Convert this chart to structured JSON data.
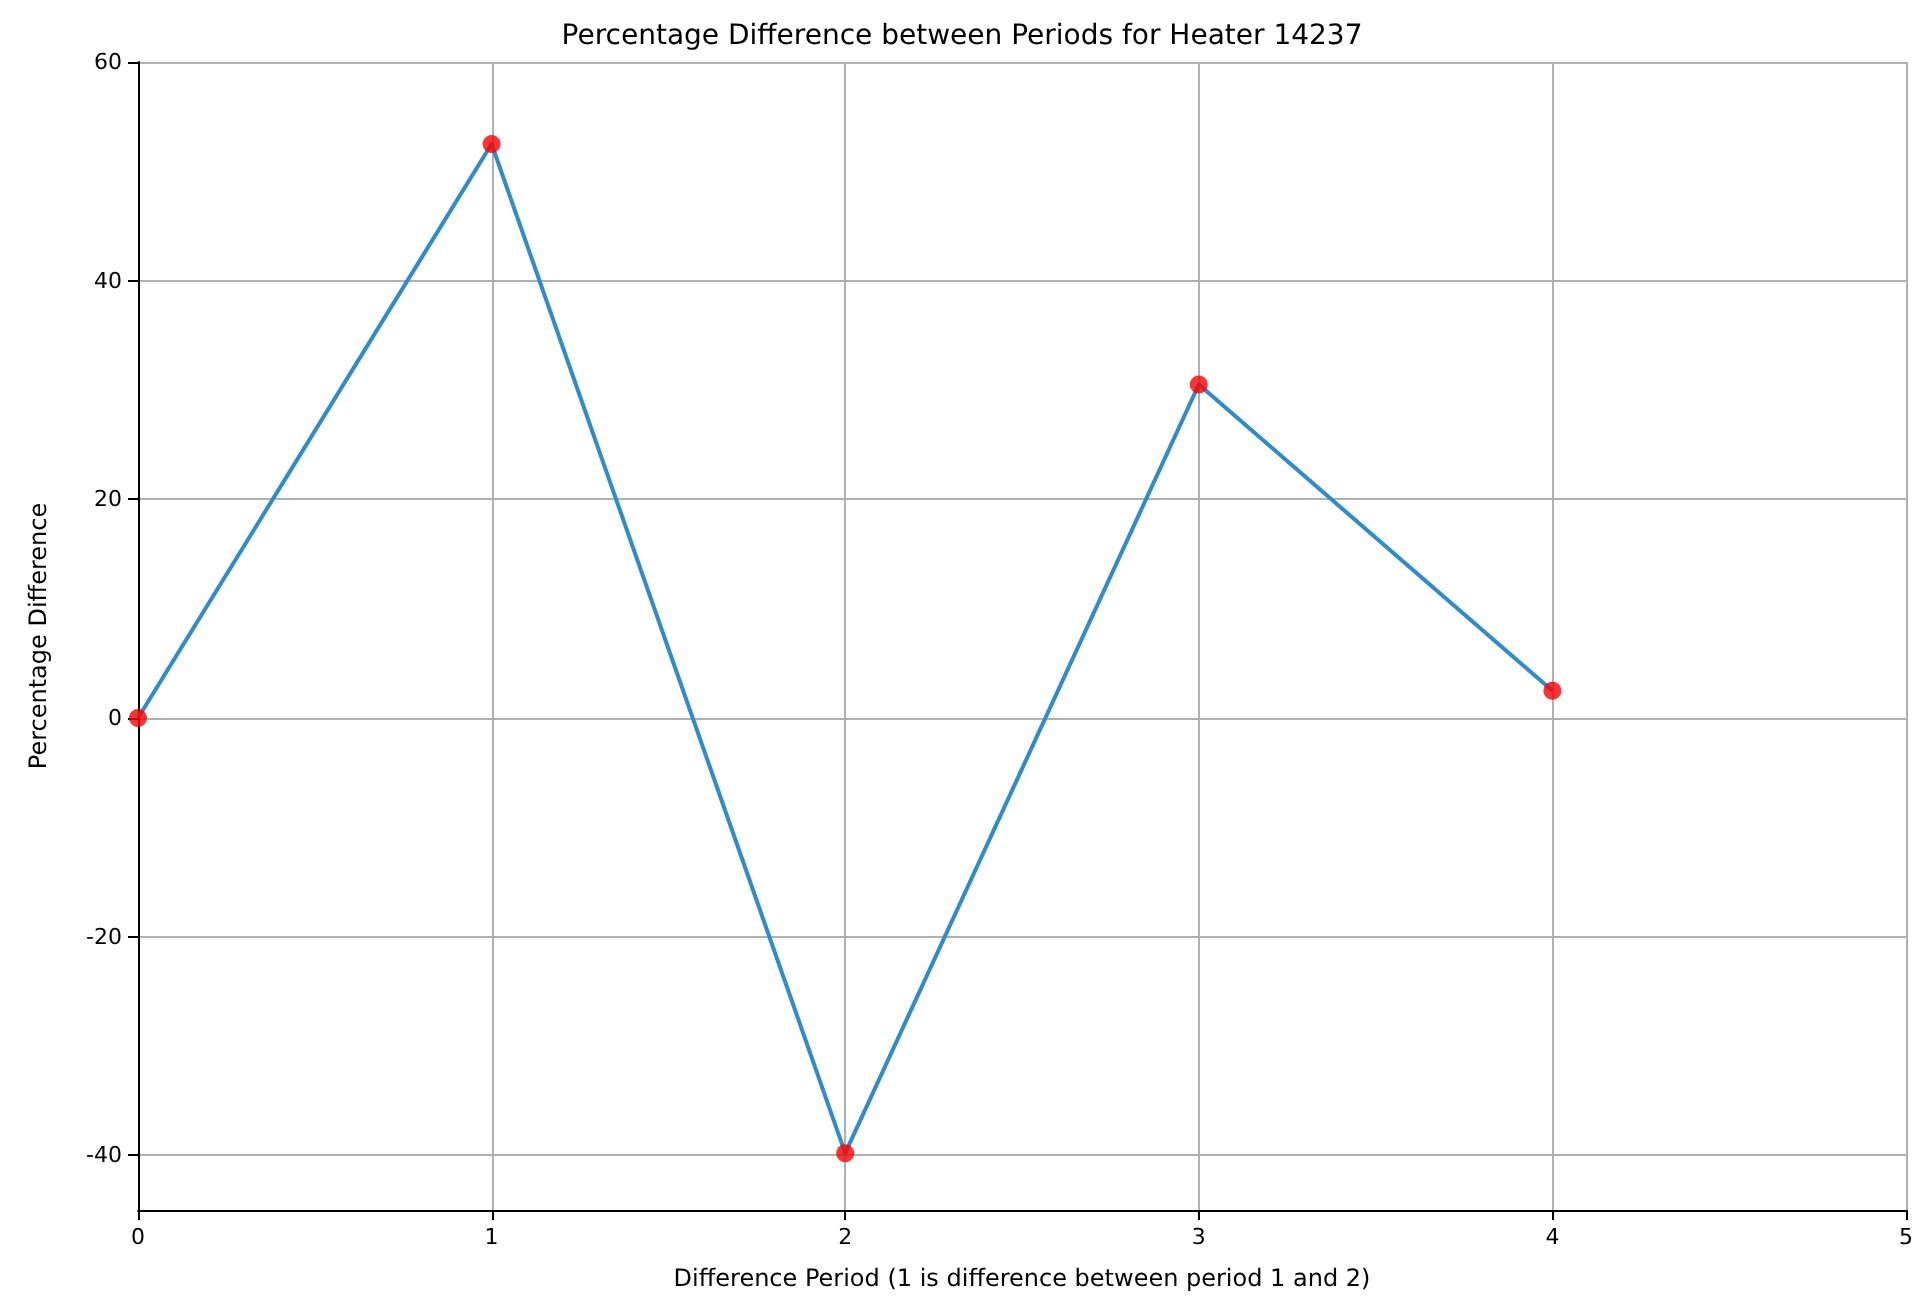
{
  "chart_data": {
    "type": "line",
    "title": "Percentage Difference between Periods for Heater 14237",
    "xlabel": "Difference Period (1 is difference between period 1 and 2)",
    "ylabel": "Percentage Difference",
    "x": [
      0,
      1,
      2,
      3,
      4
    ],
    "series": [
      {
        "color": "#2b8cd0",
        "values": [
          0,
          52.5,
          -39.8,
          30.5,
          2.5
        ],
        "marker": "none"
      },
      {
        "type": "scatter",
        "color": "#ff0000",
        "values": [
          0,
          52.5,
          -39.8,
          30.5,
          2.5
        ],
        "marker": "circle"
      }
    ],
    "xlim": [
      0,
      5
    ],
    "xticks": [
      0,
      1,
      2,
      3,
      4,
      5
    ],
    "ylim": [
      -45,
      60
    ],
    "yticks": [
      -40,
      -20,
      0,
      20,
      40,
      60
    ],
    "grid": true
  }
}
